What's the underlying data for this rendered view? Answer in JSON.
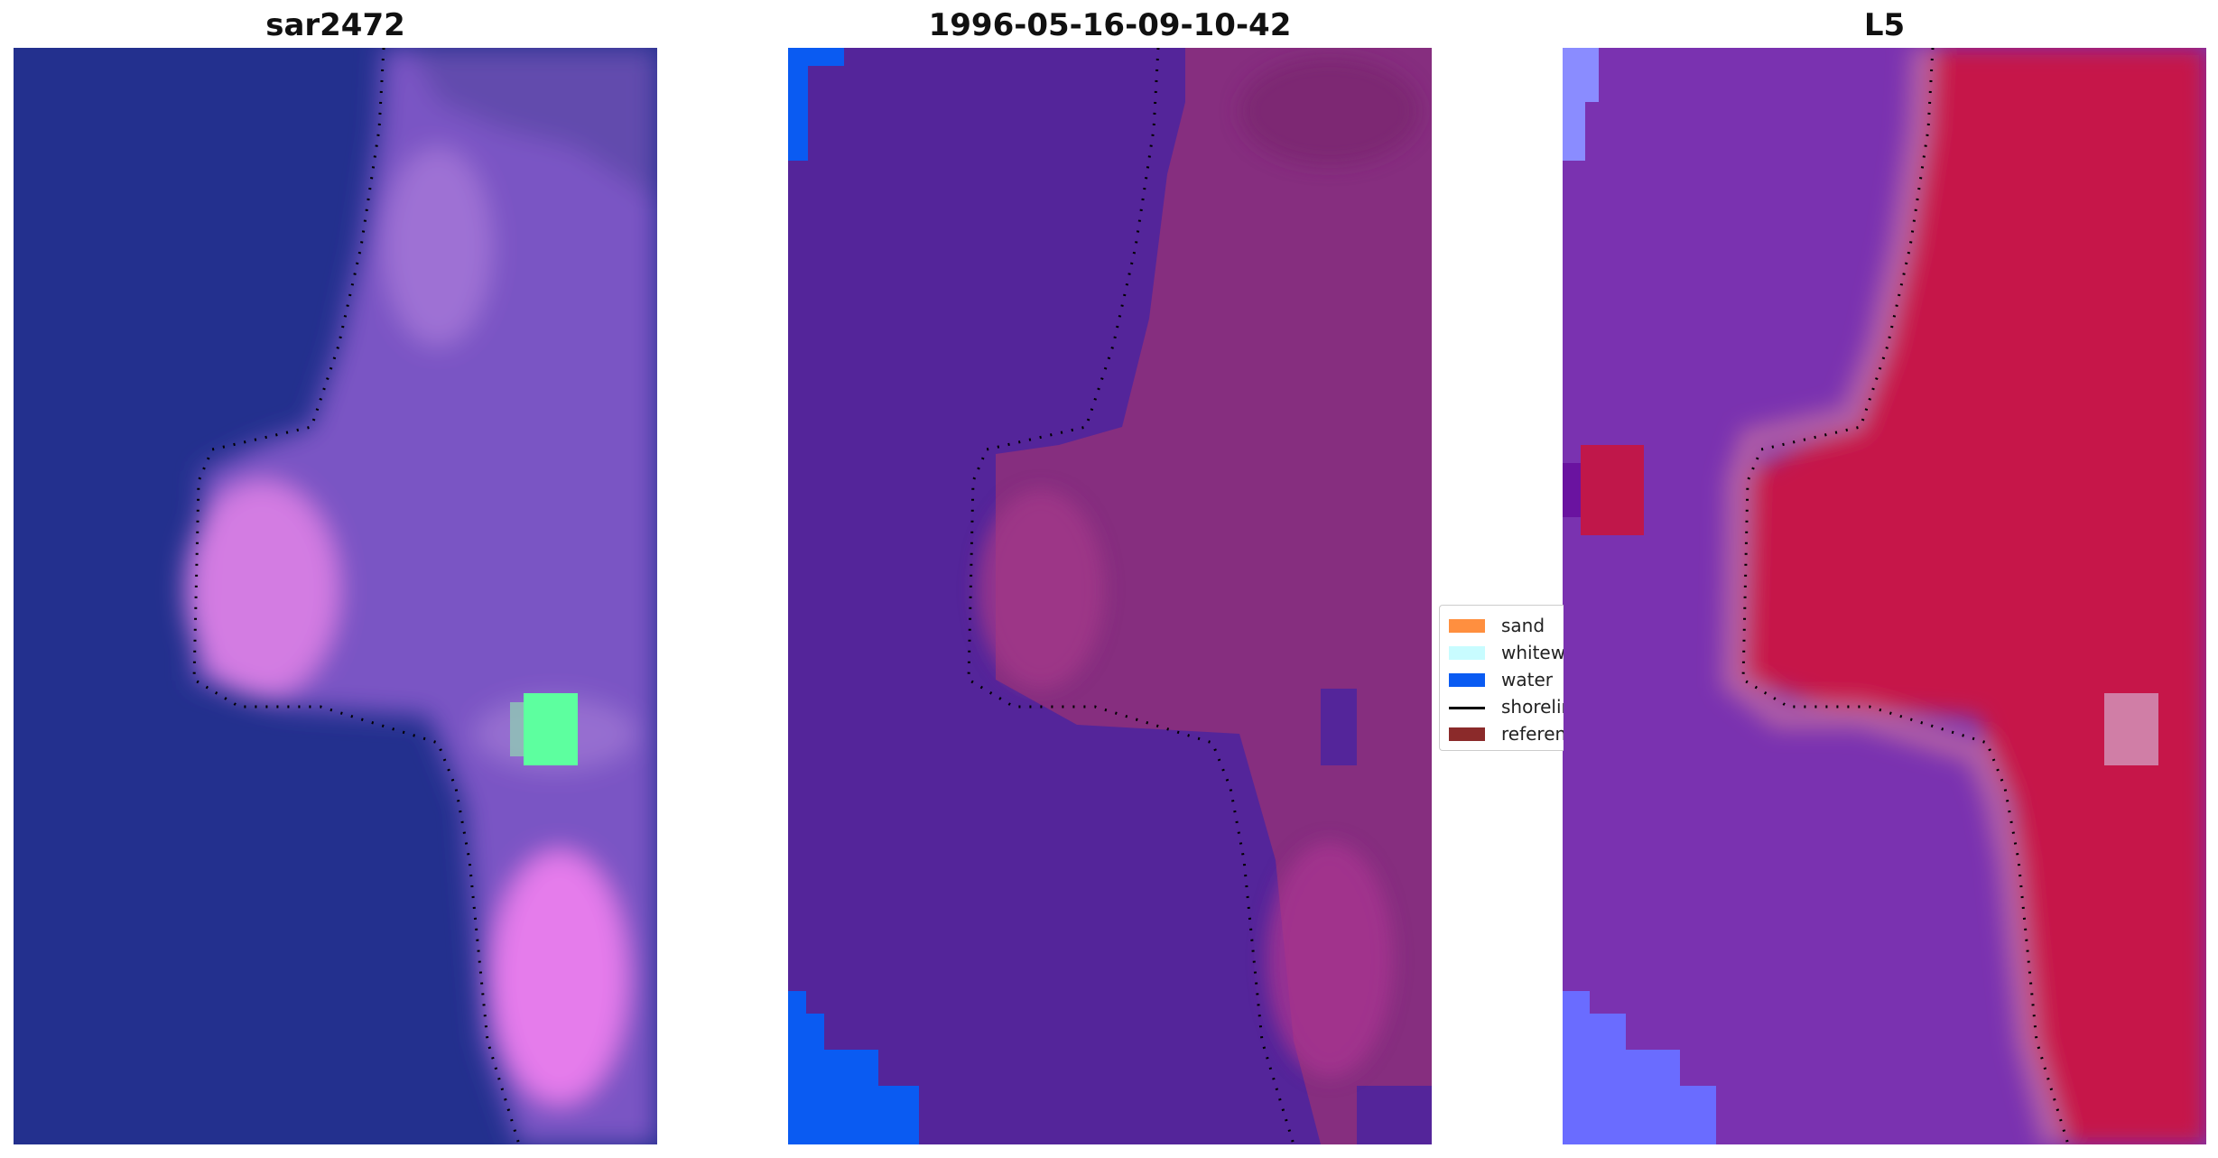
{
  "panels": [
    {
      "title": "sar2472"
    },
    {
      "title": "1996-05-16-09-10-42"
    },
    {
      "title": "L5"
    }
  ],
  "legend": {
    "items": [
      {
        "label": "sand",
        "color": "#ff8f3f"
      },
      {
        "label": "whitewater",
        "color": "#c8fcff"
      },
      {
        "label": "water",
        "color": "#0a5bf2"
      },
      {
        "label": "shoreline",
        "color": "#000000"
      },
      {
        "label": "reference",
        "color": "#8b2a2a"
      }
    ]
  },
  "colors": {
    "rgb_water": "#23308e",
    "rgb_land": "#7a55c4",
    "rgb_pink": "#dd7fe6",
    "rgb_green": "#5dff9f",
    "class_water_overlay": "#54259a",
    "class_land": "#862e7f",
    "class_water_edge": "#0a5bf2",
    "index_water": "#7a32b0",
    "index_land": "#c61848",
    "index_edge_blue": "#6a6cff"
  }
}
